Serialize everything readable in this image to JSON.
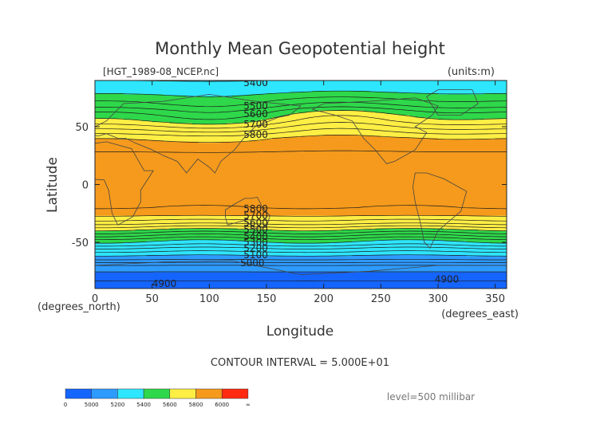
{
  "chart_data": {
    "type": "heatmap",
    "title": "Monthly Mean Geopotential height",
    "file_label": "[HGT_1989-08_NCEP.nc]",
    "units_label": "(units:m)",
    "xlabel": "Longitude",
    "ylabel": "Latitude",
    "x_unit_label": "(degrees_east)",
    "y_unit_label": "(degrees_north)",
    "xlim": [
      0,
      360
    ],
    "ylim": [
      -90,
      90
    ],
    "x_ticks": [
      0,
      50,
      100,
      150,
      200,
      250,
      300,
      350
    ],
    "y_ticks": [
      50,
      0,
      -50
    ],
    "contour_interval_label": "CONTOUR INTERVAL = 5.000E+01",
    "level_label": "level=500 millibar",
    "latitude_profile": {
      "lat": [
        90,
        80,
        75,
        70,
        67,
        64,
        60,
        55,
        50,
        45,
        40,
        30,
        25,
        20,
        0,
        -20,
        -25,
        -27,
        -30,
        -33,
        -36,
        -39,
        -42,
        -45,
        -48,
        -52,
        -55,
        -60,
        -65,
        -70,
        -80,
        -90
      ],
      "value": [
        5350,
        5390,
        5430,
        5470,
        5500,
        5540,
        5580,
        5620,
        5680,
        5740,
        5800,
        5840,
        5870,
        5870,
        5860,
        5850,
        5840,
        5800,
        5760,
        5720,
        5660,
        5600,
        5540,
        5480,
        5420,
        5360,
        5300,
        5220,
        5150,
        5050,
        4960,
        4930
      ]
    },
    "contour_labels": [
      {
        "text": "5400",
        "lon": 130,
        "lat": 88
      },
      {
        "text": "5500",
        "lon": 130,
        "lat": 68
      },
      {
        "text": "5600",
        "lon": 130,
        "lat": 61
      },
      {
        "text": "5700",
        "lon": 130,
        "lat": 52
      },
      {
        "text": "5800",
        "lon": 130,
        "lat": 43
      },
      {
        "text": "5800",
        "lon": 130,
        "lat": -21
      },
      {
        "text": "5700",
        "lon": 130,
        "lat": -27
      },
      {
        "text": "5600",
        "lon": 130,
        "lat": -33
      },
      {
        "text": "5500",
        "lon": 130,
        "lat": -39
      },
      {
        "text": "5400",
        "lon": 130,
        "lat": -45
      },
      {
        "text": "5300",
        "lon": 130,
        "lat": -50
      },
      {
        "text": "5200",
        "lon": 130,
        "lat": -55
      },
      {
        "text": "5100",
        "lon": 130,
        "lat": -61
      },
      {
        "text": "5000",
        "lon": 127,
        "lat": -68
      },
      {
        "text": "4900",
        "lon": 50,
        "lat": -86
      },
      {
        "text": "4900",
        "lon": 297,
        "lat": -82
      }
    ],
    "colorbar": {
      "colors": [
        "#1565ff",
        "#2e9bff",
        "#2ee6ff",
        "#2ed84a",
        "#ffee44",
        "#f59a1c",
        "#ff2a10"
      ],
      "tick_labels": [
        "0",
        "5000",
        "5200",
        "5400",
        "5600",
        "5800",
        "6000",
        "∞"
      ],
      "thresholds": [
        0,
        5000,
        5200,
        5400,
        5600,
        5800,
        6000
      ]
    }
  }
}
